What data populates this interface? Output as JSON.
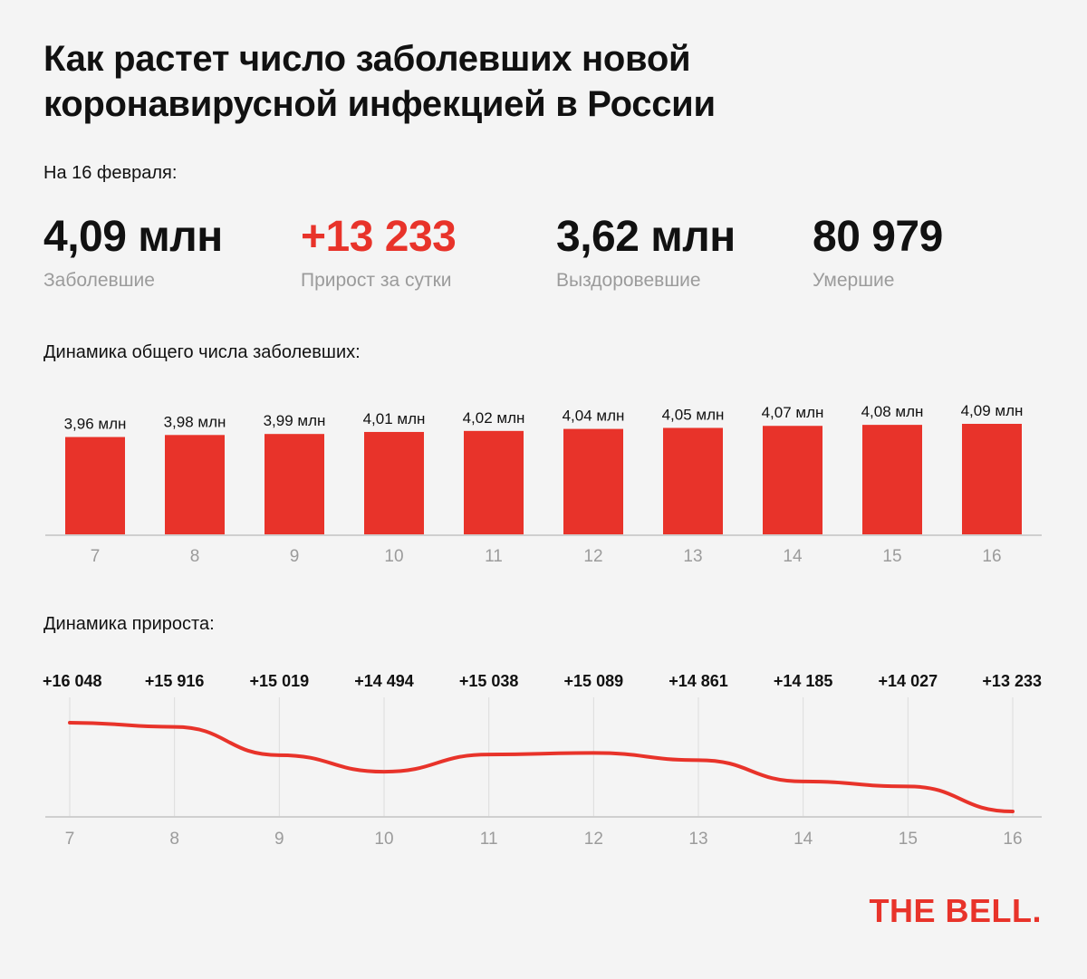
{
  "title_lines": [
    "Как растет число заболевших новой",
    "коронавирусной инфекцией в России"
  ],
  "as_of": "На 16 февраля:",
  "kpis": [
    {
      "value": "4,09 млн",
      "label": "Заболевшие"
    },
    {
      "value": "+13 233",
      "label": "Прирост за сутки"
    },
    {
      "value": "3,62 млн",
      "label": "Выздоровевшие"
    },
    {
      "value": "80 979",
      "label": "Умершие"
    }
  ],
  "colors": {
    "accent": "#e8332a",
    "muted": "#9b9b9b",
    "axis": "#cfcfcf",
    "grid": "#dddddd"
  },
  "brand": "THE BELL.",
  "chart_data": [
    {
      "type": "bar",
      "title": "Динамика общего числа заболевших:",
      "categories": [
        "7",
        "8",
        "9",
        "10",
        "11",
        "12",
        "13",
        "14",
        "15",
        "16"
      ],
      "values": [
        3.96,
        3.98,
        3.99,
        4.01,
        4.02,
        4.04,
        4.05,
        4.07,
        4.08,
        4.09
      ],
      "data_labels": [
        "3,96 млн",
        "3,98 млн",
        "3,99 млн",
        "4,01 млн",
        "4,02 млн",
        "4,04 млн",
        "4,05 млн",
        "4,07 млн",
        "4,08 млн",
        "4,09 млн"
      ],
      "unit": "млн",
      "color": "#e8332a",
      "grid": false
    },
    {
      "type": "line",
      "title": "Динамика прироста:",
      "x": [
        "7",
        "8",
        "9",
        "10",
        "11",
        "12",
        "13",
        "14",
        "15",
        "16"
      ],
      "values": [
        16048,
        15916,
        15019,
        14494,
        15038,
        15089,
        14861,
        14185,
        14027,
        13233
      ],
      "data_labels": [
        "+16 048",
        "+15 916",
        "+15 019",
        "+14 494",
        "+15 038",
        "+15 089",
        "+14 861",
        "+14 185",
        "+14 027",
        "+13 233"
      ],
      "color": "#e8332a",
      "grid": true
    }
  ]
}
